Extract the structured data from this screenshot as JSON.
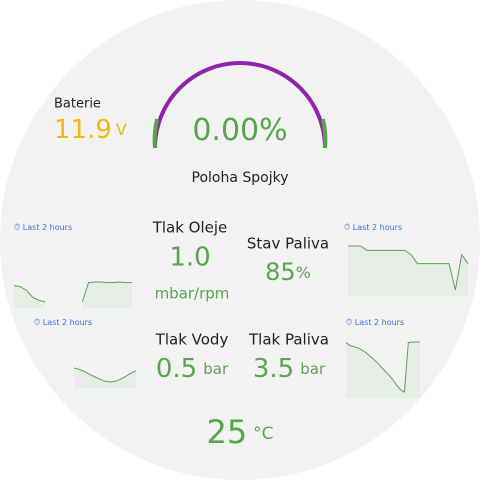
{
  "battery": {
    "label": "Baterie",
    "value": "11.9",
    "unit": "V"
  },
  "gauge": {
    "value": "0.00",
    "unit": "%",
    "label": "Poloha Spojky"
  },
  "oil_pressure": {
    "label": "Tlak Oleje",
    "value": "1.0",
    "unit": "mbar/rpm"
  },
  "fuel_level": {
    "label": "Stav Paliva",
    "value": "85",
    "unit": "%"
  },
  "water_pressure": {
    "label": "Tlak Vody",
    "value": "0.5",
    "unit": "bar"
  },
  "fuel_pressure": {
    "label": "Tlak Paliva",
    "value": "3.5",
    "unit": "bar"
  },
  "temperature": {
    "value": "25",
    "unit": "°C"
  },
  "sparklines": [
    {
      "time_range": "Last 2 hours",
      "values": [
        70,
        68,
        62,
        50,
        45,
        42,
        null,
        null,
        null,
        null,
        null,
        42,
        75,
        76,
        76,
        75,
        75,
        76,
        75,
        75
      ]
    },
    {
      "time_range": "Last 2 hours",
      "values": [
        90,
        90,
        90,
        89,
        89,
        89,
        89,
        89,
        89,
        89,
        88,
        86,
        86,
        86,
        86,
        86,
        86,
        80,
        88,
        86
      ]
    },
    {
      "time_range": "Last 2 hours",
      "values": [
        80,
        76,
        70,
        62,
        55,
        48,
        42,
        40,
        42,
        48,
        56,
        65,
        72
      ]
    },
    {
      "time_range": "Last 2 hours",
      "values": [
        95,
        90,
        88,
        86,
        82,
        78,
        72,
        66,
        60,
        52,
        45,
        38,
        30,
        20,
        12,
        8,
        95,
        96,
        96,
        96
      ]
    }
  ]
}
